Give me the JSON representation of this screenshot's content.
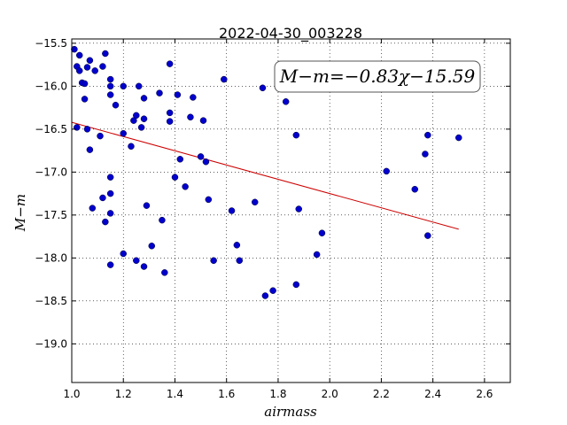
{
  "chart_data": {
    "type": "scatter",
    "title": "2022-04-30_003228",
    "xlabel": "airmass",
    "ylabel": "M−m",
    "xlim": [
      1.0,
      2.7
    ],
    "ylim": [
      -19.45,
      -15.45
    ],
    "y_inverted": true,
    "grid": true,
    "grid_style": "dotted",
    "x_ticks": [
      1.0,
      1.2,
      1.4,
      1.6,
      1.8,
      2.0,
      2.2,
      2.4,
      2.6
    ],
    "x_tick_labels": [
      "1.0",
      "1.2",
      "1.4",
      "1.6",
      "1.8",
      "2.0",
      "2.2",
      "2.4",
      "2.6"
    ],
    "y_ticks": [
      -15.5,
      -16.0,
      -16.5,
      -17.0,
      -17.5,
      -18.0,
      -18.5,
      -19.0
    ],
    "y_tick_labels": [
      "−15.5",
      "−16.0",
      "−16.5",
      "−17.0",
      "−17.5",
      "−18.0",
      "−18.5",
      "−19.0"
    ],
    "annotation": "M−m=−0.83χ−15.59",
    "fit_line": {
      "slope": -0.83,
      "intercept": -15.59,
      "x_range": [
        1.0,
        2.5
      ],
      "color": "#cc0000"
    },
    "point_color": "#0000cc",
    "points": [
      [
        1.01,
        -15.57
      ],
      [
        1.03,
        -15.64
      ],
      [
        1.02,
        -15.77
      ],
      [
        1.03,
        -15.82
      ],
      [
        1.06,
        -15.78
      ],
      [
        1.07,
        -15.7
      ],
      [
        1.09,
        -15.82
      ],
      [
        1.12,
        -15.77
      ],
      [
        1.13,
        -15.62
      ],
      [
        1.04,
        -15.96
      ],
      [
        1.05,
        -15.97
      ],
      [
        1.05,
        -16.15
      ],
      [
        1.15,
        -15.92
      ],
      [
        1.15,
        -16.0
      ],
      [
        1.15,
        -16.1
      ],
      [
        1.17,
        -16.22
      ],
      [
        1.2,
        -16.0
      ],
      [
        1.02,
        -16.48
      ],
      [
        1.06,
        -16.5
      ],
      [
        1.07,
        -16.74
      ],
      [
        1.11,
        -16.58
      ],
      [
        1.08,
        -17.42
      ],
      [
        1.12,
        -17.3
      ],
      [
        1.13,
        -17.58
      ],
      [
        1.15,
        -17.06
      ],
      [
        1.15,
        -17.25
      ],
      [
        1.15,
        -17.48
      ],
      [
        1.15,
        -18.08
      ],
      [
        1.2,
        -16.55
      ],
      [
        1.23,
        -16.7
      ],
      [
        1.24,
        -16.4
      ],
      [
        1.25,
        -16.34
      ],
      [
        1.26,
        -16.0
      ],
      [
        1.27,
        -16.48
      ],
      [
        1.28,
        -16.14
      ],
      [
        1.28,
        -16.38
      ],
      [
        1.2,
        -17.95
      ],
      [
        1.25,
        -18.03
      ],
      [
        1.28,
        -18.1
      ],
      [
        1.29,
        -17.39
      ],
      [
        1.31,
        -17.86
      ],
      [
        1.34,
        -16.08
      ],
      [
        1.35,
        -17.56
      ],
      [
        1.36,
        -18.17
      ],
      [
        1.38,
        -15.74
      ],
      [
        1.38,
        -16.31
      ],
      [
        1.38,
        -16.41
      ],
      [
        1.4,
        -17.06
      ],
      [
        1.41,
        -16.1
      ],
      [
        1.42,
        -16.85
      ],
      [
        1.44,
        -17.17
      ],
      [
        1.46,
        -16.36
      ],
      [
        1.47,
        -16.13
      ],
      [
        1.5,
        -16.82
      ],
      [
        1.51,
        -16.4
      ],
      [
        1.52,
        -16.88
      ],
      [
        1.53,
        -17.32
      ],
      [
        1.55,
        -18.03
      ],
      [
        1.59,
        -15.92
      ],
      [
        1.62,
        -17.45
      ],
      [
        1.64,
        -17.85
      ],
      [
        1.65,
        -18.03
      ],
      [
        1.71,
        -17.35
      ],
      [
        1.74,
        -16.02
      ],
      [
        1.75,
        -18.44
      ],
      [
        1.78,
        -18.38
      ],
      [
        1.83,
        -16.18
      ],
      [
        1.87,
        -16.57
      ],
      [
        1.87,
        -18.31
      ],
      [
        1.88,
        -17.43
      ],
      [
        1.95,
        -17.96
      ],
      [
        1.97,
        -17.71
      ],
      [
        2.22,
        -16.99
      ],
      [
        2.33,
        -17.2
      ],
      [
        2.37,
        -16.79
      ],
      [
        2.38,
        -16.57
      ],
      [
        2.38,
        -17.74
      ],
      [
        2.5,
        -16.6
      ]
    ]
  }
}
